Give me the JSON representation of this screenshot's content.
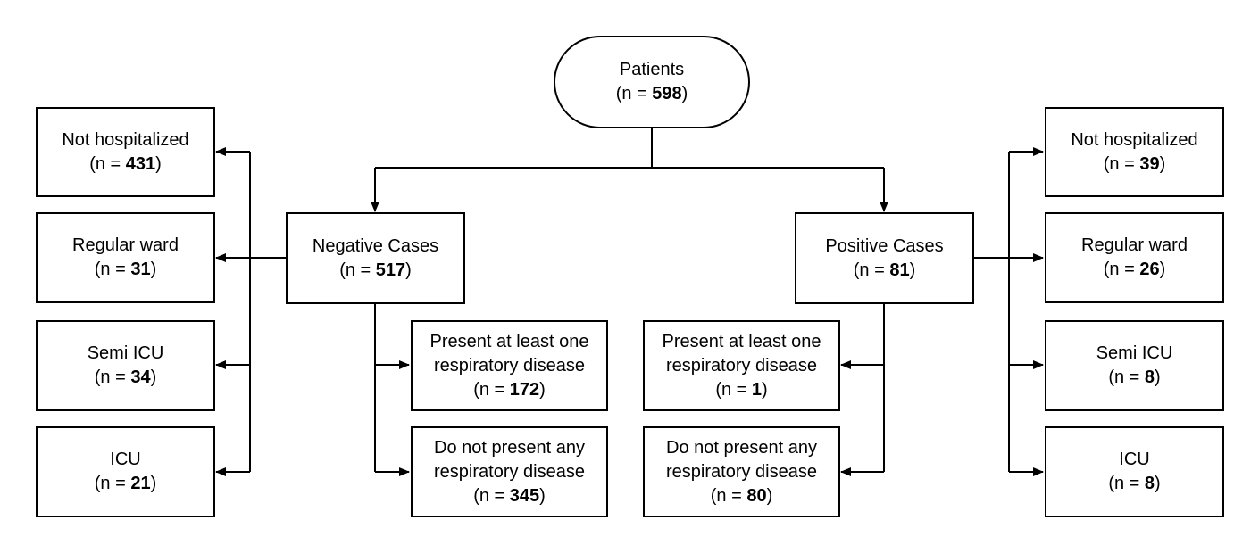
{
  "root": {
    "label": "Patients",
    "count": "598"
  },
  "negative": {
    "label": "Negative Cases",
    "count": "517",
    "hospital": [
      {
        "label": "Not hospitalized",
        "count": "431"
      },
      {
        "label": "Regular ward",
        "count": "31"
      },
      {
        "label": "Semi ICU",
        "count": "34"
      },
      {
        "label": "ICU",
        "count": "21"
      }
    ],
    "respiratory": [
      {
        "line1": "Present at least one",
        "line2": "respiratory disease",
        "count": "172"
      },
      {
        "line1": "Do not present any",
        "line2": "respiratory disease",
        "count": "345"
      }
    ]
  },
  "positive": {
    "label": "Positive Cases",
    "count": "81",
    "hospital": [
      {
        "label": "Not hospitalized",
        "count": "39"
      },
      {
        "label": "Regular ward",
        "count": "26"
      },
      {
        "label": "Semi ICU",
        "count": "8"
      },
      {
        "label": "ICU",
        "count": "8"
      }
    ],
    "respiratory": [
      {
        "line1": "Present at least one",
        "line2": "respiratory disease",
        "count": "1"
      },
      {
        "line1": "Do not present any",
        "line2": "respiratory disease",
        "count": "80"
      }
    ]
  },
  "count_prefix": "(n = ",
  "count_suffix": ")"
}
